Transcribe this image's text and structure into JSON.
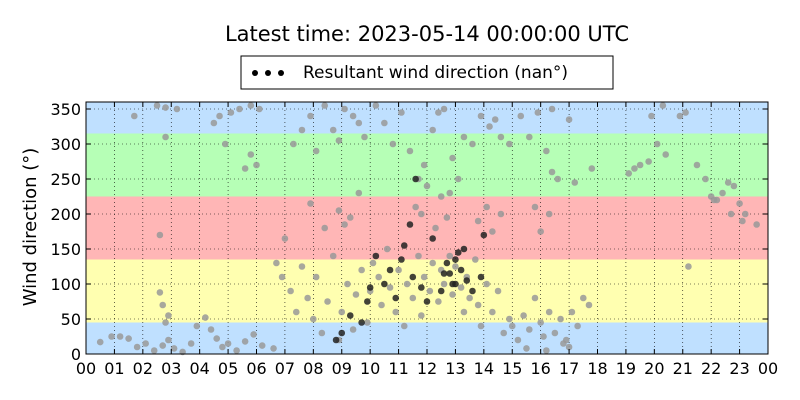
{
  "chart_data": {
    "type": "scatter",
    "title": "Latest time: 2023-05-14 00:00:00 UTC",
    "ylabel": "Wind direction (°)",
    "xlabel": "",
    "xlim": [
      0,
      24
    ],
    "ylim": [
      0,
      360
    ],
    "x_ticks": [
      "00",
      "01",
      "02",
      "03",
      "04",
      "05",
      "06",
      "07",
      "08",
      "09",
      "10",
      "11",
      "12",
      "13",
      "14",
      "15",
      "16",
      "17",
      "18",
      "19",
      "20",
      "21",
      "22",
      "23",
      "00"
    ],
    "y_ticks": [
      0,
      50,
      100,
      150,
      200,
      250,
      300,
      350
    ],
    "grid": true,
    "legend": {
      "placement": "top-center",
      "entries": [
        "Resultant wind direction (nan°)"
      ]
    },
    "bands": [
      {
        "from": 0,
        "to": 45,
        "color": "#bfe0ff"
      },
      {
        "from": 45,
        "to": 135,
        "color": "#ffffb0"
      },
      {
        "from": 135,
        "to": 225,
        "color": "#ffb6b6"
      },
      {
        "from": 225,
        "to": 315,
        "color": "#b6ffb6"
      },
      {
        "from": 315,
        "to": 360,
        "color": "#bfe0ff"
      }
    ],
    "series": [
      {
        "name": "Resultant wind direction (nan°)",
        "color": "#999999",
        "points": [
          [
            0.5,
            17
          ],
          [
            0.9,
            25
          ],
          [
            1.2,
            25
          ],
          [
            1.5,
            22
          ],
          [
            1.8,
            10
          ],
          [
            2.1,
            15
          ],
          [
            2.4,
            5
          ],
          [
            2.7,
            12
          ],
          [
            2.9,
            20
          ],
          [
            3.1,
            8
          ],
          [
            3.4,
            3
          ],
          [
            3.7,
            15
          ],
          [
            3.9,
            40
          ],
          [
            4.2,
            52
          ],
          [
            4.4,
            35
          ],
          [
            4.6,
            22
          ],
          [
            4.8,
            10
          ],
          [
            5.0,
            15
          ],
          [
            5.3,
            5
          ],
          [
            5.6,
            18
          ],
          [
            5.9,
            28
          ],
          [
            6.2,
            12
          ],
          [
            6.6,
            8
          ],
          [
            2.5,
            355
          ],
          [
            2.8,
            352
          ],
          [
            3.2,
            350
          ],
          [
            4.5,
            330
          ],
          [
            4.7,
            340
          ],
          [
            5.1,
            345
          ],
          [
            5.4,
            350
          ],
          [
            5.8,
            355
          ],
          [
            6.1,
            350
          ],
          [
            4.9,
            300
          ],
          [
            5.6,
            265
          ],
          [
            6.0,
            270
          ],
          [
            5.8,
            285
          ],
          [
            2.8,
            310
          ],
          [
            1.7,
            340
          ],
          [
            2.6,
            88
          ],
          [
            2.7,
            70
          ],
          [
            2.9,
            55
          ],
          [
            2.6,
            170
          ],
          [
            2.8,
            45
          ],
          [
            6.7,
            130
          ],
          [
            6.9,
            110
          ],
          [
            7.0,
            165
          ],
          [
            7.2,
            90
          ],
          [
            7.4,
            60
          ],
          [
            7.6,
            125
          ],
          [
            7.8,
            80
          ],
          [
            8.0,
            50
          ],
          [
            8.1,
            110
          ],
          [
            8.3,
            30
          ],
          [
            8.5,
            75
          ],
          [
            8.7,
            140
          ],
          [
            8.9,
            20
          ],
          [
            9.0,
            60
          ],
          [
            9.2,
            100
          ],
          [
            9.4,
            35
          ],
          [
            9.5,
            85
          ],
          [
            9.7,
            120
          ],
          [
            9.9,
            45
          ],
          [
            7.3,
            300
          ],
          [
            7.6,
            320
          ],
          [
            7.9,
            340
          ],
          [
            8.1,
            290
          ],
          [
            8.4,
            355
          ],
          [
            8.7,
            320
          ],
          [
            8.9,
            305
          ],
          [
            9.1,
            350
          ],
          [
            9.4,
            340
          ],
          [
            9.6,
            330
          ],
          [
            9.8,
            310
          ],
          [
            8.9,
            205
          ],
          [
            9.1,
            185
          ],
          [
            9.3,
            195
          ],
          [
            9.6,
            230
          ],
          [
            7.9,
            215
          ],
          [
            8.4,
            180
          ],
          [
            10.0,
            90
          ],
          [
            10.1,
            130
          ],
          [
            10.3,
            110
          ],
          [
            10.4,
            70
          ],
          [
            10.6,
            150
          ],
          [
            10.7,
            95
          ],
          [
            10.9,
            60
          ],
          [
            11.0,
            120
          ],
          [
            11.2,
            40
          ],
          [
            11.3,
            100
          ],
          [
            11.5,
            80
          ],
          [
            11.7,
            140
          ],
          [
            11.8,
            55
          ],
          [
            11.9,
            110
          ],
          [
            12.1,
            90
          ],
          [
            12.2,
            130
          ],
          [
            12.4,
            75
          ],
          [
            12.5,
            120
          ],
          [
            10.2,
            355
          ],
          [
            10.5,
            330
          ],
          [
            10.8,
            300
          ],
          [
            11.1,
            345
          ],
          [
            11.4,
            290
          ],
          [
            11.7,
            250
          ],
          [
            11.9,
            270
          ],
          [
            12.2,
            320
          ],
          [
            12.4,
            345
          ],
          [
            12.6,
            350
          ],
          [
            11.6,
            210
          ],
          [
            11.8,
            200
          ],
          [
            12.0,
            240
          ],
          [
            12.3,
            180
          ],
          [
            12.5,
            225
          ],
          [
            12.7,
            195
          ],
          [
            12.6,
            100
          ],
          [
            12.8,
            140
          ],
          [
            12.9,
            85
          ],
          [
            13.0,
            125
          ],
          [
            13.2,
            95
          ],
          [
            13.3,
            60
          ],
          [
            13.4,
            110
          ],
          [
            13.5,
            80
          ],
          [
            13.7,
            135
          ],
          [
            13.8,
            70
          ],
          [
            13.9,
            40
          ],
          [
            14.1,
            100
          ],
          [
            14.3,
            60
          ],
          [
            14.5,
            90
          ],
          [
            14.7,
            30
          ],
          [
            14.9,
            50
          ],
          [
            12.9,
            280
          ],
          [
            13.1,
            250
          ],
          [
            13.3,
            310
          ],
          [
            13.6,
            300
          ],
          [
            13.9,
            340
          ],
          [
            14.2,
            325
          ],
          [
            14.4,
            335
          ],
          [
            14.6,
            310
          ],
          [
            14.9,
            300
          ],
          [
            13.8,
            190
          ],
          [
            14.1,
            210
          ],
          [
            14.3,
            175
          ],
          [
            14.6,
            200
          ],
          [
            12.8,
            230
          ],
          [
            15.0,
            40
          ],
          [
            15.2,
            20
          ],
          [
            15.4,
            55
          ],
          [
            15.6,
            35
          ],
          [
            15.8,
            80
          ],
          [
            16.0,
            45
          ],
          [
            16.1,
            25
          ],
          [
            16.3,
            60
          ],
          [
            16.5,
            30
          ],
          [
            16.7,
            50
          ],
          [
            16.9,
            20
          ],
          [
            17.1,
            60
          ],
          [
            17.3,
            40
          ],
          [
            17.5,
            80
          ],
          [
            17.7,
            70
          ],
          [
            17.0,
            10
          ],
          [
            16.2,
            5
          ],
          [
            15.5,
            8
          ],
          [
            16.8,
            15
          ],
          [
            15.3,
            340
          ],
          [
            15.6,
            310
          ],
          [
            15.9,
            345
          ],
          [
            16.2,
            290
          ],
          [
            16.4,
            260
          ],
          [
            15.8,
            210
          ],
          [
            16.0,
            175
          ],
          [
            16.3,
            200
          ],
          [
            16.6,
            250
          ],
          [
            17.2,
            245
          ],
          [
            17.8,
            265
          ],
          [
            16.4,
            350
          ],
          [
            17.0,
            335
          ],
          [
            19.1,
            258
          ],
          [
            19.3,
            265
          ],
          [
            19.5,
            270
          ],
          [
            19.8,
            275
          ],
          [
            20.1,
            300
          ],
          [
            20.4,
            285
          ],
          [
            20.9,
            340
          ],
          [
            21.1,
            345
          ],
          [
            21.5,
            270
          ],
          [
            21.8,
            250
          ],
          [
            22.0,
            225
          ],
          [
            22.2,
            220
          ],
          [
            22.4,
            230
          ],
          [
            22.6,
            245
          ],
          [
            22.8,
            240
          ],
          [
            23.0,
            215
          ],
          [
            23.2,
            200
          ],
          [
            23.6,
            185
          ],
          [
            21.2,
            125
          ],
          [
            20.3,
            355
          ],
          [
            19.9,
            340
          ],
          [
            22.1,
            220
          ],
          [
            22.7,
            200
          ],
          [
            23.1,
            190
          ]
        ]
      },
      {
        "name": "",
        "color": "#222222",
        "points": [
          [
            9.0,
            30
          ],
          [
            9.3,
            55
          ],
          [
            9.7,
            45
          ],
          [
            10.0,
            95
          ],
          [
            10.2,
            140
          ],
          [
            10.5,
            100
          ],
          [
            10.9,
            80
          ],
          [
            11.2,
            155
          ],
          [
            11.4,
            185
          ],
          [
            11.5,
            110
          ],
          [
            11.8,
            95
          ],
          [
            12.0,
            75
          ],
          [
            12.2,
            165
          ],
          [
            12.5,
            90
          ],
          [
            12.7,
            130
          ],
          [
            12.8,
            115
          ],
          [
            12.9,
            100
          ],
          [
            13.0,
            135
          ],
          [
            13.1,
            145
          ],
          [
            13.2,
            120
          ],
          [
            13.3,
            150
          ],
          [
            13.4,
            105
          ],
          [
            13.6,
            90
          ],
          [
            14.0,
            170
          ],
          [
            13.9,
            110
          ],
          [
            12.6,
            115
          ],
          [
            11.1,
            135
          ],
          [
            10.7,
            120
          ],
          [
            9.9,
            75
          ],
          [
            13.0,
            100
          ],
          [
            8.8,
            20
          ],
          [
            11.6,
            250
          ]
        ]
      }
    ]
  }
}
